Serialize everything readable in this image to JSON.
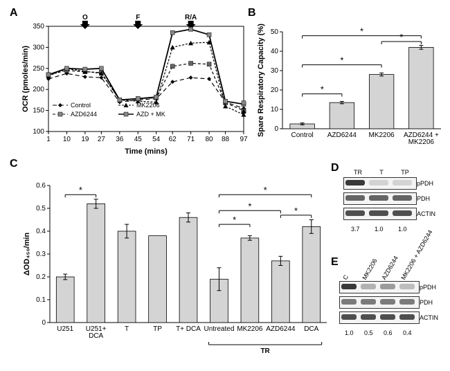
{
  "panelA": {
    "label": "A",
    "type": "line",
    "x_ticks": [
      1,
      10,
      19,
      27,
      36,
      45,
      54,
      62,
      71,
      80,
      88,
      97
    ],
    "x_label": "Time (mins)",
    "y_ticks": [
      100,
      150,
      200,
      250,
      300,
      350
    ],
    "y_label": "OCR (pmoles/min)",
    "arrows": [
      {
        "x": 19,
        "label": "O"
      },
      {
        "x": 45,
        "label": "F"
      },
      {
        "x": 71,
        "label": "R/A"
      }
    ],
    "series": [
      {
        "name": "Control",
        "marker": "diamond",
        "dash": "6,4",
        "color": "#000",
        "values": [
          225,
          238,
          230,
          228,
          170,
          175,
          178,
          218,
          228,
          225,
          170,
          155,
          152
        ]
      },
      {
        "name": "AZD6244",
        "marker": "square",
        "dash": "4,3",
        "color": "#000",
        "values": [
          235,
          245,
          242,
          240,
          175,
          178,
          180,
          255,
          262,
          260,
          168,
          150,
          148
        ]
      },
      {
        "name": "MK2206",
        "marker": "triangle",
        "dash": "3,2",
        "color": "#000",
        "values": [
          232,
          249,
          243,
          238,
          175,
          172,
          170,
          300,
          310,
          312,
          160,
          140,
          148
        ]
      },
      {
        "name": "AZD + MK",
        "marker": "square",
        "dash": "",
        "color": "#000",
        "values": [
          235,
          250,
          248,
          250,
          175,
          178,
          182,
          335,
          343,
          330,
          172,
          165,
          168
        ]
      }
    ],
    "xlim": [
      1,
      97
    ],
    "ylim": [
      100,
      350
    ]
  },
  "panelB": {
    "label": "B",
    "type": "bar",
    "y_label": "Spare Respiratory Capacity (%)",
    "y_ticks": [
      0,
      10,
      20,
      30,
      40,
      50
    ],
    "categories": [
      "Control",
      "AZD6244",
      "MK2206",
      "AZD6244 +\nMK2206"
    ],
    "values": [
      2.5,
      13.5,
      28,
      42
    ],
    "errors": [
      0.5,
      0.6,
      0.8,
      1.0
    ],
    "sig": [
      [
        0,
        1
      ],
      [
        0,
        2
      ],
      [
        0,
        3
      ],
      [
        2,
        3
      ]
    ]
  },
  "panelC": {
    "label": "C",
    "type": "bar",
    "y_label": "ΔOD₄₅₀/min",
    "y_ticks": [
      0,
      0.1,
      0.2,
      0.3,
      0.4,
      0.5,
      0.6
    ],
    "categories": [
      "U251",
      "U251+\nDCA",
      "T",
      "TP",
      "T+ DCA",
      "Untreated",
      "MK2206",
      "AZD6244",
      "DCA"
    ],
    "values": [
      0.2,
      0.52,
      0.4,
      0.38,
      0.46,
      0.19,
      0.37,
      0.27,
      0.42
    ],
    "errors": [
      0.012,
      0.02,
      0.03,
      0,
      0.02,
      0.05,
      0.01,
      0.02,
      0.03
    ],
    "tr_bracket": {
      "from": 5,
      "to": 8,
      "label": "TR"
    },
    "sig": [
      [
        0,
        1
      ],
      [
        5,
        6
      ],
      [
        5,
        7
      ],
      [
        5,
        8
      ],
      [
        7,
        8
      ]
    ]
  },
  "panelD": {
    "label": "D",
    "lanes": [
      "TR",
      "T",
      "TP"
    ],
    "rows": [
      "pPDH",
      "PDH",
      "ACTIN"
    ],
    "intensities": [
      [
        0.9,
        0.2,
        0.2
      ],
      [
        0.7,
        0.7,
        0.7
      ],
      [
        0.8,
        0.8,
        0.8
      ]
    ],
    "nums": [
      "3.7",
      "1.0",
      "1.0"
    ]
  },
  "panelE": {
    "label": "E",
    "lanes": [
      "C",
      "MK2206",
      "AZD6244",
      "MK2206 +\nAZD6244"
    ],
    "rows": [
      "pPDH",
      "PDH",
      "ACTIN"
    ],
    "intensities": [
      [
        0.9,
        0.35,
        0.45,
        0.3
      ],
      [
        0.6,
        0.6,
        0.6,
        0.6
      ],
      [
        0.8,
        0.8,
        0.8,
        0.8
      ]
    ],
    "nums": [
      "1.0",
      "0.5",
      "0.6",
      "0.4"
    ]
  }
}
